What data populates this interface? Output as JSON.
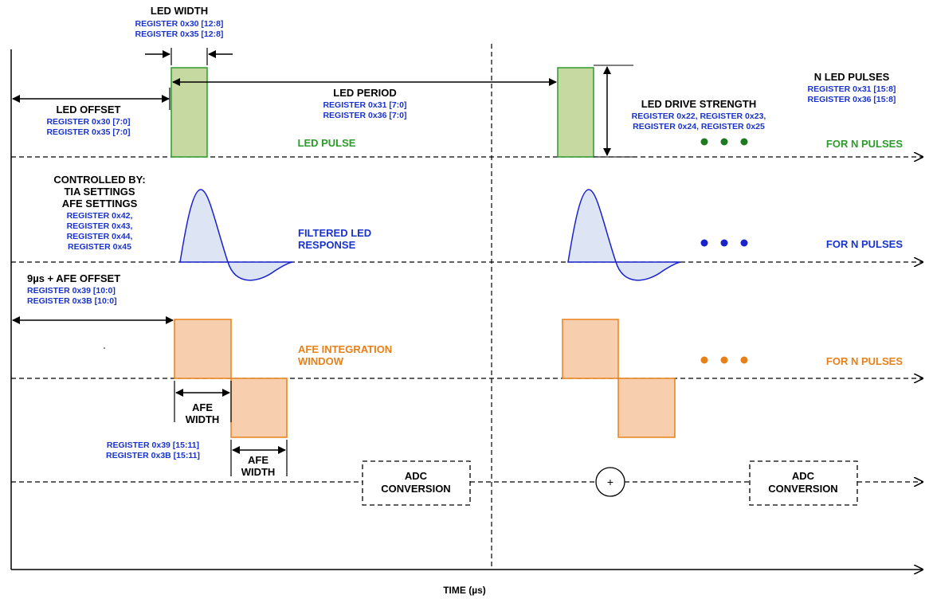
{
  "led_width": {
    "title": "LED WIDTH",
    "registers": [
      "REGISTER 0x30 [12:8]",
      "REGISTER 0x35 [12:8]"
    ]
  },
  "led_offset": {
    "title": "LED OFFSET",
    "registers": [
      "REGISTER 0x30 [7:0]",
      "REGISTER 0x35 [7:0]"
    ]
  },
  "led_period": {
    "title": "LED PERIOD",
    "registers": [
      "REGISTER 0x31 [7:0]",
      "REGISTER 0x36 [7:0]"
    ]
  },
  "led_drive": {
    "title": "LED DRIVE STRENGTH",
    "registers": [
      "REGISTER 0x22, REGISTER 0x23,",
      "REGISTER 0x24, REGISTER 0x25"
    ]
  },
  "n_led_pulses": {
    "title": "N LED PULSES",
    "registers": [
      "REGISTER 0x31 [15:8]",
      "REGISTER 0x36 [15:8]"
    ]
  },
  "led_pulse_label": "LED PULSE",
  "for_n_pulses": "FOR N PULSES",
  "controlled_by": {
    "lines": [
      "CONTROLLED BY:",
      "TIA SETTINGS",
      "AFE SETTINGS"
    ],
    "registers": [
      "REGISTER 0x42,",
      "REGISTER 0x43,",
      "REGISTER 0x44,",
      "REGISTER 0x45"
    ]
  },
  "filtered_response_label": [
    "FILTERED LED",
    "RESPONSE"
  ],
  "afe_offset": {
    "title": "9µs + AFE OFFSET",
    "registers": [
      "REGISTER 0x39 [10:0]",
      "REGISTER 0x3B [10:0]"
    ]
  },
  "afe_window_label": [
    "AFE INTEGRATION",
    "WINDOW"
  ],
  "afe_width_label": [
    "AFE",
    "WIDTH"
  ],
  "afe_width_registers": [
    "REGISTER 0x39 [15:11]",
    "REGISTER 0x3B [15:11]"
  ],
  "adc_conversion": [
    "ADC",
    "CONVERSION"
  ],
  "sum_symbol": "+",
  "x_axis_label": "TIME (µs)",
  "colors": {
    "led_fill": "#c5d9a0",
    "led_stroke": "#2e9a2e",
    "response_fill": "#dde5f4",
    "response_stroke": "#1a22cc",
    "afe_fill": "#f8cfae",
    "afe_stroke": "#e8801a",
    "register_text": "#1a33cc"
  }
}
